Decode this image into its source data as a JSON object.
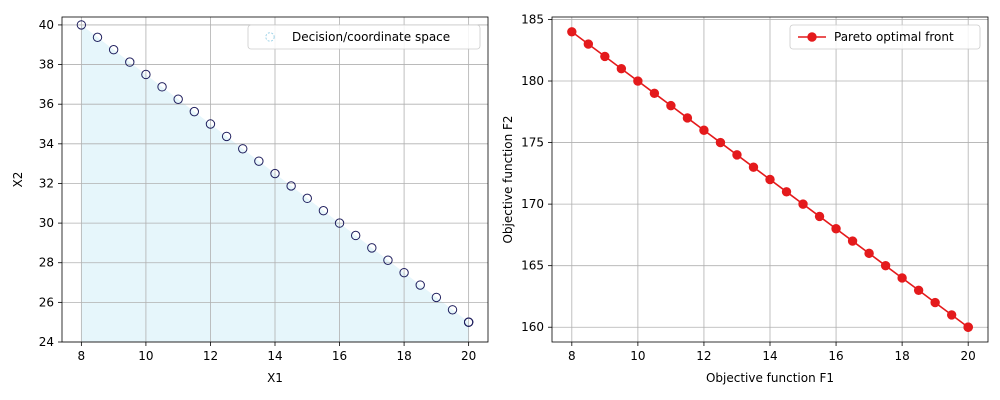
{
  "chart_data": [
    {
      "type": "scatter",
      "title": "",
      "xlabel": "X1",
      "ylabel": "X2",
      "xlim": [
        7.4,
        20.6
      ],
      "ylim": [
        24.0,
        40.4
      ],
      "xticks": [
        8,
        10,
        12,
        14,
        16,
        18,
        20
      ],
      "yticks": [
        24,
        26,
        28,
        30,
        32,
        34,
        36,
        38,
        40
      ],
      "grid": true,
      "legend_position": "top-right",
      "shaded_region": {
        "x": [
          8,
          20,
          20,
          8
        ],
        "y": [
          40,
          25,
          24,
          24
        ],
        "color": "#e6f6fb"
      },
      "series": [
        {
          "name": "Decision/coordinate space",
          "marker": "hollow-circle",
          "color": "#1f1f5e",
          "x": [
            8,
            8.5,
            9,
            9.5,
            10,
            10.5,
            11,
            11.5,
            12,
            12.5,
            13,
            13.5,
            14,
            14.5,
            15,
            15.5,
            16,
            16.5,
            17,
            17.5,
            18,
            18.5,
            19,
            19.5,
            20,
            20,
            20
          ],
          "y": [
            40,
            39.375,
            38.75,
            38.125,
            37.5,
            36.875,
            36.25,
            35.625,
            35,
            34.375,
            33.75,
            33.125,
            32.5,
            31.875,
            31.25,
            30.625,
            30,
            29.375,
            28.75,
            28.125,
            27.5,
            26.875,
            26.25,
            25.625,
            25,
            25,
            25
          ]
        }
      ]
    },
    {
      "type": "line",
      "title": "",
      "xlabel": "Objective function F1",
      "ylabel": "Objective function F2",
      "xlim": [
        7.4,
        20.6
      ],
      "ylim": [
        158.8,
        185.2
      ],
      "xticks": [
        8,
        10,
        12,
        14,
        16,
        18,
        20
      ],
      "yticks": [
        160,
        165,
        170,
        175,
        180,
        185
      ],
      "grid": true,
      "legend_position": "top-right",
      "series": [
        {
          "name": "Pareto optimal front",
          "marker": "filled-circle",
          "color": "#e41a1c",
          "x": [
            8,
            8.5,
            9,
            9.5,
            10,
            10.5,
            11,
            11.5,
            12,
            12.5,
            13,
            13.5,
            14,
            14.5,
            15,
            15.5,
            16,
            16.5,
            17,
            17.5,
            18,
            18.5,
            19,
            19.5,
            20,
            20,
            20
          ],
          "y": [
            184,
            183,
            182,
            181,
            180,
            179,
            178,
            177,
            176,
            175,
            174,
            173,
            172,
            171,
            170,
            169,
            168,
            167,
            166,
            165,
            164,
            163,
            162,
            161,
            160,
            160,
            160
          ]
        }
      ]
    }
  ]
}
